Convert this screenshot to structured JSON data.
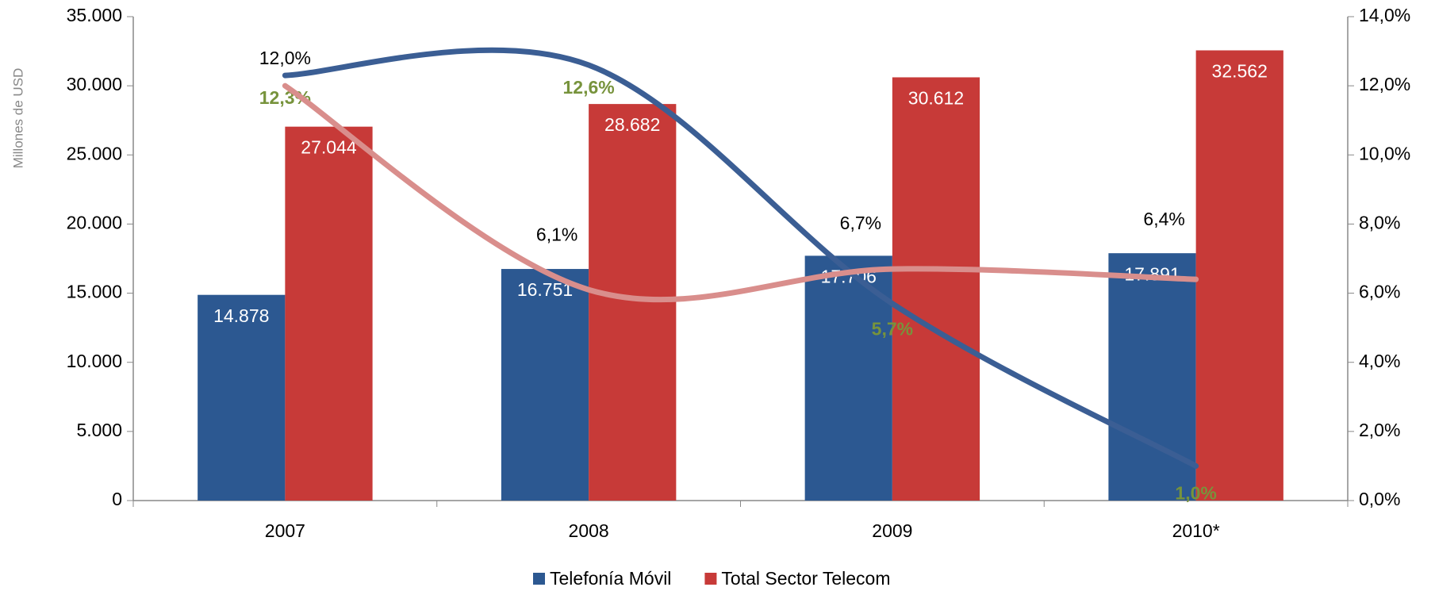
{
  "chart_data": {
    "type": "bar",
    "y_label": "Millones de USD",
    "categories": [
      "2007",
      "2008",
      "2009",
      "2010*"
    ],
    "ylim": [
      0,
      35000
    ],
    "yticks": [
      0,
      {
        "value": 5000,
        "label": "5.000"
      },
      {
        "value": 10000,
        "label": "10.000"
      },
      {
        "value": 15000,
        "label": "15.000"
      },
      {
        "value": 20000,
        "label": "20.000"
      },
      {
        "value": 25000,
        "label": "25.000"
      },
      {
        "value": 30000,
        "label": "30.000"
      },
      {
        "value": 35000,
        "label": "35.000"
      }
    ],
    "y2lim": [
      0,
      14
    ],
    "y2ticks": [
      {
        "value": 0,
        "label": "0,0%"
      },
      {
        "value": 2,
        "label": "2,0%"
      },
      {
        "value": 4,
        "label": "4,0%"
      },
      {
        "value": 6,
        "label": "6,0%"
      },
      {
        "value": 8,
        "label": "8,0%"
      },
      {
        "value": 10,
        "label": "10,0%"
      },
      {
        "value": 12,
        "label": "12,0%"
      },
      {
        "value": 14,
        "label": "14,0%"
      }
    ],
    "series": [
      {
        "name": "Telefonía Móvil",
        "color": "#2c5891",
        "values": [
          14878,
          16751,
          17706,
          17891
        ],
        "value_labels": [
          "14.878",
          "16.751",
          "17.706",
          "17.891"
        ]
      },
      {
        "name": "Total Sector Telecom",
        "color": "#c73a38",
        "values": [
          27044,
          28682,
          30612,
          32562
        ],
        "value_labels": [
          "27.044",
          "28.682",
          "30.612",
          "32.562"
        ]
      },
      {
        "type": "line",
        "axis": "y2",
        "color": "#3b5e94",
        "label_color": "#77933c",
        "values": [
          12.3,
          12.6,
          5.7,
          1.0
        ],
        "value_labels": [
          "12,3%",
          "12,6%",
          "5,7%",
          "1,0%"
        ]
      },
      {
        "type": "line",
        "axis": "y2",
        "color": "#d98e8c",
        "label_color": "#000000",
        "values": [
          12.0,
          6.1,
          6.7,
          6.4
        ],
        "value_labels": [
          "12,0%",
          "6,1%",
          "6,7%",
          "6,4%"
        ]
      }
    ]
  }
}
